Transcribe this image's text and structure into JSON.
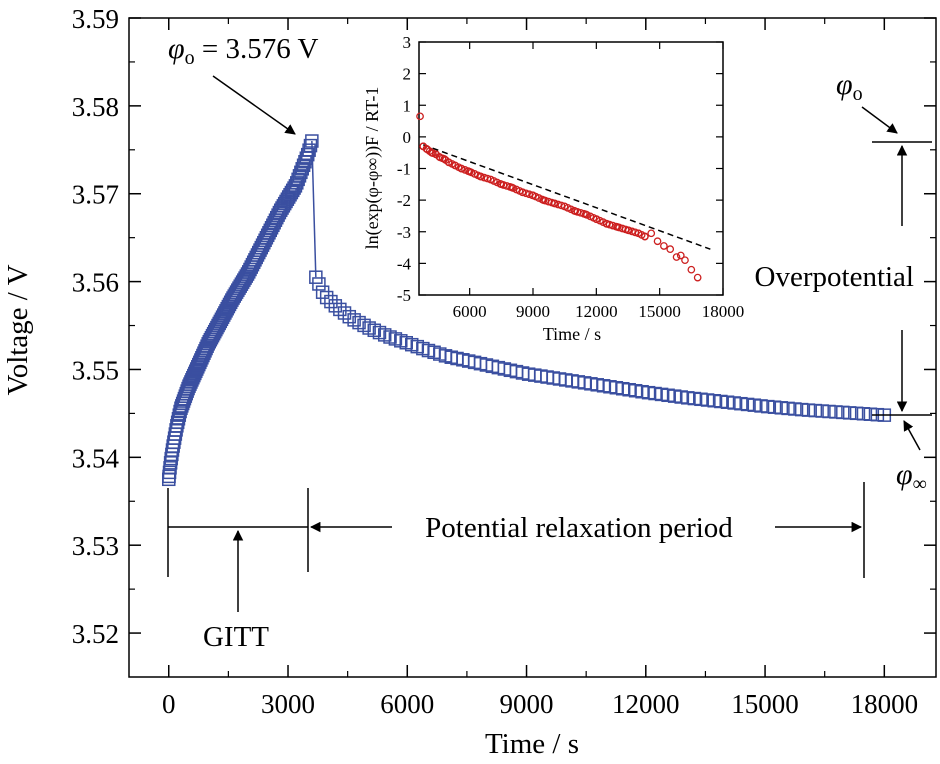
{
  "chart_data": [
    {
      "type": "scatter",
      "xlabel": "Time / s",
      "ylabel": "Voltage / V",
      "xlim": [
        -1000,
        19300
      ],
      "ylim": [
        3.515,
        3.59
      ],
      "xticks": [
        0,
        3000,
        6000,
        9000,
        12000,
        15000,
        18000
      ],
      "xtick_labels": [
        "0",
        "3000",
        "6000",
        "9000",
        "12000",
        "15000",
        "18000"
      ],
      "yticks": [
        3.52,
        3.53,
        3.54,
        3.55,
        3.56,
        3.57,
        3.58,
        3.59
      ],
      "ytick_labels": [
        "3.52",
        "3.53",
        "3.54",
        "3.55",
        "3.56",
        "3.57",
        "3.58",
        "3.59"
      ],
      "marker": "open-square",
      "color": "#3a4fa0",
      "series": [
        {
          "x": [
            0,
            50,
            100,
            200,
            300,
            500,
            700,
            1000,
            1300,
            1600,
            2000,
            2400,
            2800,
            3200,
            3500,
            3600
          ],
          "y": [
            3.5375,
            3.5395,
            3.541,
            3.5435,
            3.5455,
            3.548,
            3.55,
            3.553,
            3.5555,
            3.558,
            3.561,
            3.5645,
            3.568,
            3.571,
            3.5745,
            3.576
          ]
        },
        {
          "x": [
            3700,
            3900,
            4200,
            4600,
            5000,
            5500,
            6000,
            6500,
            7000,
            8000,
            9000,
            10000,
            11000,
            12000,
            13000,
            14000,
            15000,
            16000,
            17000,
            18000
          ],
          "y": [
            3.5605,
            3.5585,
            3.5572,
            3.5558,
            3.5548,
            3.5538,
            3.553,
            3.5522,
            3.5515,
            3.5505,
            3.5495,
            3.5488,
            3.5481,
            3.5474,
            3.5468,
            3.5463,
            3.5458,
            3.5454,
            3.5451,
            3.5448
          ]
        }
      ],
      "annotations": {
        "phi_o_label_sym": "φ",
        "phi_o_label_sub": "o",
        "phi_o_label_value": " = 3.576 V",
        "gitt": "GITT",
        "relaxation": "Potential relaxation period",
        "overpotential": "Overpotential",
        "phi_o_right_sym": "φ",
        "phi_o_right_sub": "o",
        "phi_inf_sym": "φ",
        "phi_inf_sub": "∞"
      }
    },
    {
      "type": "scatter",
      "xlabel": "Time / s",
      "ylabel": "ln(exp(φ-φ∞))F / RT-1",
      "xlim": [
        3600,
        18000
      ],
      "ylim": [
        -5,
        3
      ],
      "xticks": [
        6000,
        9000,
        12000,
        15000,
        18000
      ],
      "xtick_labels": [
        "6000",
        "9000",
        "12000",
        "15000",
        "18000"
      ],
      "yticks": [
        -5,
        -4,
        -3,
        -2,
        -1,
        0,
        1,
        2,
        3
      ],
      "ytick_labels": [
        "-5",
        "-4",
        "-3",
        "-2",
        "-1",
        "0",
        "1",
        "2",
        "3"
      ],
      "marker": "open-circle",
      "color": "#cc1f1f",
      "points": {
        "x": [
          3650,
          3800,
          4000,
          4200,
          4400,
          4600,
          4800,
          5000,
          5300,
          5600,
          6000,
          6500,
          7000,
          7500,
          8000,
          8500,
          9000,
          9500,
          10000,
          10500,
          11000,
          11500,
          12000,
          12500,
          13000,
          13500,
          14000,
          14300,
          14600,
          14900,
          15200,
          15500,
          15800,
          16000,
          16200,
          16500,
          16800
        ],
        "y": [
          0.65,
          -0.3,
          -0.4,
          -0.5,
          -0.55,
          -0.65,
          -0.7,
          -0.8,
          -0.9,
          -1.0,
          -1.1,
          -1.25,
          -1.35,
          -1.5,
          -1.6,
          -1.75,
          -1.85,
          -2.0,
          -2.1,
          -2.2,
          -2.35,
          -2.45,
          -2.6,
          -2.75,
          -2.85,
          -2.95,
          -3.05,
          -3.15,
          -3.05,
          -3.3,
          -3.45,
          -3.55,
          -3.8,
          -3.75,
          -3.9,
          -4.2,
          -4.45
        ]
      },
      "fit_line": {
        "x": [
          3800,
          17400
        ],
        "y": [
          -0.25,
          -3.55
        ],
        "style": "dashed"
      }
    }
  ]
}
